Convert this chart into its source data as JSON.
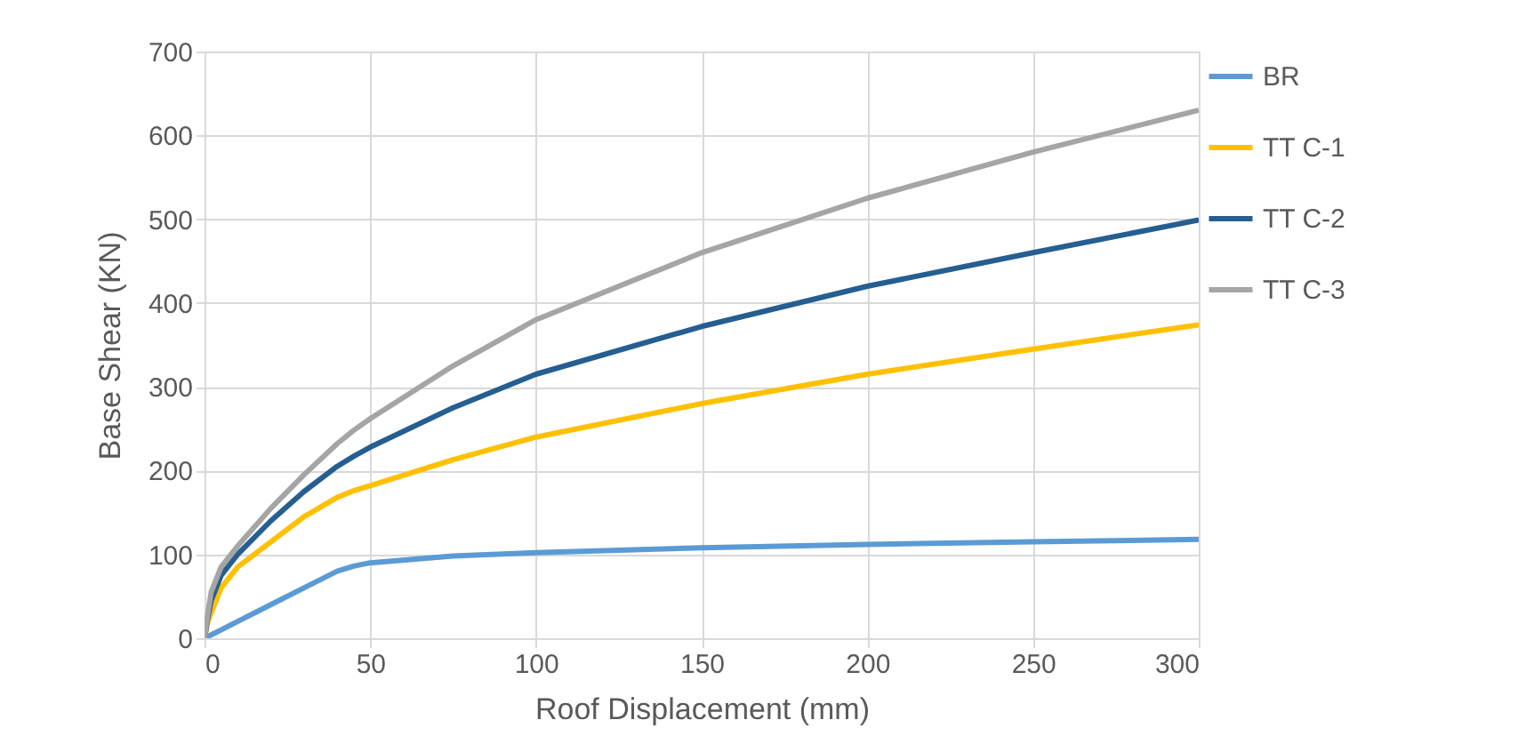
{
  "chart_data": {
    "type": "line",
    "xlabel": "Roof Displacement (mm)",
    "ylabel": "Base Shear (KN)",
    "x": [
      0,
      1,
      2,
      5,
      10,
      20,
      30,
      40,
      45,
      50,
      75,
      100,
      150,
      200,
      250,
      300
    ],
    "series": [
      {
        "name": "BR",
        "color": "#5b9bd5",
        "values": [
          0,
          2,
          4,
          10,
          20,
          40,
          60,
          80,
          86,
          90,
          98,
          102,
          108,
          112,
          115,
          118
        ]
      },
      {
        "name": "TT C-1",
        "color": "#ffc000",
        "values": [
          0,
          20,
          30,
          60,
          85,
          115,
          145,
          168,
          176,
          182,
          213,
          240,
          280,
          315,
          345,
          374
        ]
      },
      {
        "name": "TT C-2",
        "color": "#255e91",
        "values": [
          0,
          25,
          45,
          75,
          100,
          140,
          175,
          205,
          217,
          228,
          275,
          315,
          372,
          420,
          460,
          499
        ]
      },
      {
        "name": "TT C-3",
        "color": "#a5a5a5",
        "values": [
          0,
          30,
          55,
          85,
          110,
          155,
          195,
          232,
          248,
          262,
          325,
          380,
          460,
          525,
          580,
          630
        ]
      }
    ],
    "xlim": [
      0,
      300
    ],
    "xticks": [
      0,
      50,
      100,
      150,
      200,
      250,
      300
    ],
    "ylim": [
      0,
      700
    ],
    "yticks": [
      0,
      100,
      200,
      300,
      400,
      500,
      600,
      700
    ],
    "grid": true,
    "legend": "right",
    "marker": "none",
    "line_style": "solid"
  }
}
